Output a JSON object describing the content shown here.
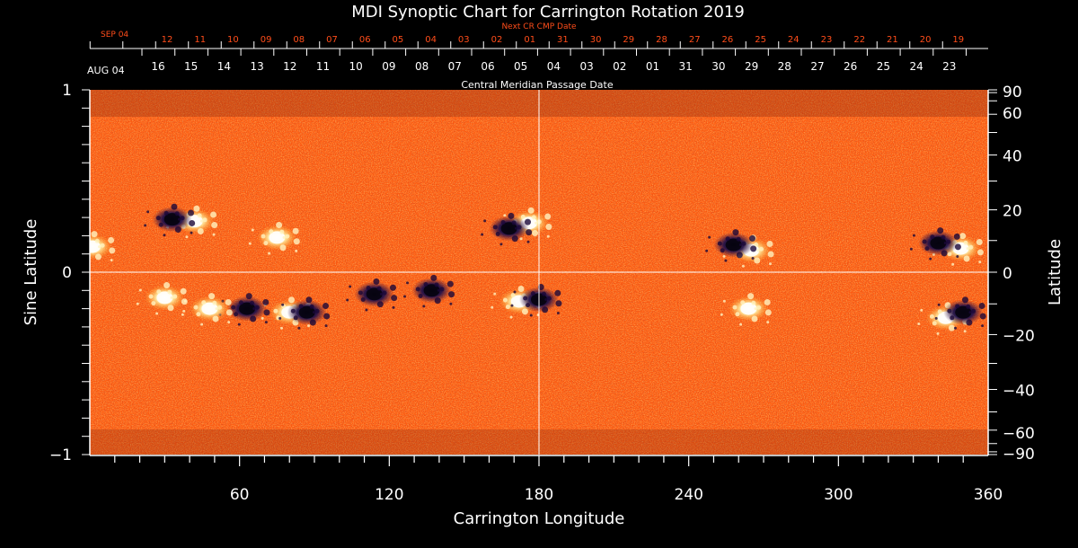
{
  "chart_data": {
    "type": "heatmap",
    "title": "MDI Synoptic Chart for Carrington Rotation 2019",
    "xlabel": "Carrington Longitude",
    "ylabel_left": "Sine Latitude",
    "ylabel_right": "Latitude",
    "xlim": [
      0,
      360
    ],
    "ylim": [
      -1,
      1
    ],
    "x_ticks": [
      "60",
      "120",
      "180",
      "240",
      "300",
      "360"
    ],
    "x_tick_values": [
      60,
      120,
      180,
      240,
      300,
      360
    ],
    "y_ticks_left": [
      "1",
      "0",
      "−1"
    ],
    "y_tick_values_left": [
      1,
      0,
      -1
    ],
    "y_ticks_right": [
      "90",
      "60",
      "40",
      "20",
      "0",
      "−20",
      "−40",
      "−60",
      "−90"
    ],
    "y_tick_values_right": [
      90,
      60,
      40,
      20,
      0,
      -20,
      -40,
      -60,
      -90
    ],
    "top_axis": {
      "label": "Central Meridian Passage Date",
      "start_label": "AUG 04",
      "dates": [
        "16",
        "15",
        "14",
        "13",
        "12",
        "11",
        "10",
        "09",
        "08",
        "07",
        "06",
        "05",
        "04",
        "03",
        "02",
        "01",
        "31",
        "30",
        "29",
        "28",
        "27",
        "26",
        "25",
        "24",
        "23"
      ]
    },
    "next_axis": {
      "label": "Next CR CMP Date",
      "start_label": "SEP 04",
      "dates": [
        "12",
        "11",
        "10",
        "09",
        "08",
        "07",
        "06",
        "05",
        "04",
        "03",
        "02",
        "01",
        "31",
        "30",
        "29",
        "28",
        "27",
        "26",
        "25",
        "24",
        "23",
        "22",
        "21",
        "20",
        "19"
      ]
    },
    "crosshair": {
      "longitude": 180,
      "sine_latitude": 0
    },
    "colors": {
      "background": "#ff5a10",
      "positive_polarity": "#fff6c8",
      "negative_polarity": "#1a0a40",
      "next_axis": "#ff4d1a",
      "axes": "#ffffff"
    },
    "active_regions": [
      {
        "lon": 42,
        "sinlat": 0.28,
        "polarity": "+"
      },
      {
        "lon": 33,
        "sinlat": 0.29,
        "polarity": "-"
      },
      {
        "lon": 75,
        "sinlat": 0.19,
        "polarity": "+"
      },
      {
        "lon": 176,
        "sinlat": 0.27,
        "polarity": "+"
      },
      {
        "lon": 168,
        "sinlat": 0.24,
        "polarity": "-"
      },
      {
        "lon": 265,
        "sinlat": 0.12,
        "polarity": "+"
      },
      {
        "lon": 258,
        "sinlat": 0.15,
        "polarity": "-"
      },
      {
        "lon": 349,
        "sinlat": 0.13,
        "polarity": "+"
      },
      {
        "lon": 340,
        "sinlat": 0.16,
        "polarity": "-"
      },
      {
        "lon": 80,
        "sinlat": -0.22,
        "polarity": "+"
      },
      {
        "lon": 63,
        "sinlat": -0.2,
        "polarity": "-"
      },
      {
        "lon": 87,
        "sinlat": -0.22,
        "polarity": "-"
      },
      {
        "lon": 48,
        "sinlat": -0.2,
        "polarity": "+"
      },
      {
        "lon": 30,
        "sinlat": -0.14,
        "polarity": "+"
      },
      {
        "lon": 172,
        "sinlat": -0.16,
        "polarity": "+"
      },
      {
        "lon": 180,
        "sinlat": -0.15,
        "polarity": "-"
      },
      {
        "lon": 343,
        "sinlat": -0.25,
        "polarity": "+"
      },
      {
        "lon": 350,
        "sinlat": -0.22,
        "polarity": "-"
      },
      {
        "lon": 1,
        "sinlat": 0.14,
        "polarity": "+"
      },
      {
        "lon": 114,
        "sinlat": -0.12,
        "polarity": "-"
      },
      {
        "lon": 137,
        "sinlat": -0.1,
        "polarity": "-"
      },
      {
        "lon": 264,
        "sinlat": -0.2,
        "polarity": "+"
      }
    ]
  }
}
